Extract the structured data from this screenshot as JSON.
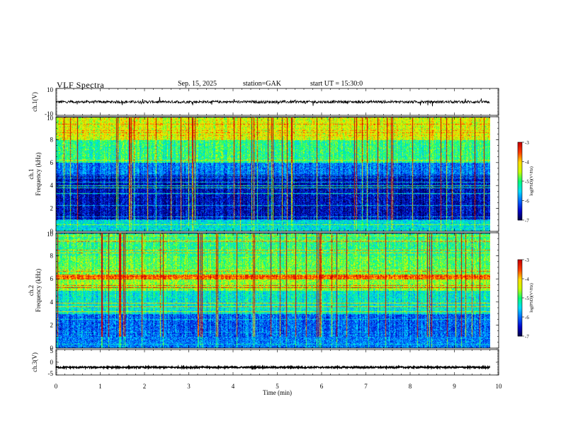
{
  "header": {
    "title": "VLF  Spectra",
    "date": "Sep. 15, 2025",
    "station": "station=GAK",
    "start": "start  UT =   15:30:0"
  },
  "colors": {
    "trace": "#000000",
    "colormap": [
      "#00003c",
      "#0000c8",
      "#0064ff",
      "#00dcff",
      "#00ff78",
      "#c8ff00",
      "#ffdc00",
      "#ff3c00",
      "#c80000",
      "#ffffff"
    ]
  },
  "chart_data": [
    {
      "type": "line",
      "panel": "ch1-waveform",
      "ylabel": "ch.1(V)",
      "ylim": [
        -10,
        10
      ],
      "yticks": [
        "10",
        "-10"
      ],
      "xlim": [
        0,
        9.8
      ],
      "series": [
        {
          "baseline": 0,
          "amplitude": 1
        }
      ]
    },
    {
      "type": "heatmap",
      "panel": "ch1-spectrogram",
      "ylabel": "ch.1\nFrequency (kHz)",
      "ylim": [
        0,
        10
      ],
      "yticks": [
        "0",
        "2",
        "4",
        "6",
        "8",
        "10"
      ],
      "xlim": [
        0,
        9.8
      ],
      "colorbar": {
        "label": "log(PSD)(V²/Hz)",
        "range": [
          -7,
          -3
        ],
        "ticks": [
          "-3",
          "-4",
          "-5",
          "-6",
          "-7"
        ]
      },
      "bands": [
        {
          "from": 0,
          "to": 1,
          "value": -5.5
        },
        {
          "from": 1,
          "to": 5,
          "value": -6.8
        },
        {
          "from": 5,
          "to": 6,
          "value": -6.2
        },
        {
          "from": 6,
          "to": 8,
          "value": -5.3
        },
        {
          "from": 8,
          "to": 10,
          "value": -4.6
        }
      ]
    },
    {
      "type": "heatmap",
      "panel": "ch2-spectrogram",
      "ylabel": "ch.2\nFrequency (kHz)",
      "ylim": [
        0,
        10
      ],
      "yticks": [
        "0",
        "2",
        "4",
        "6",
        "8",
        "10"
      ],
      "xlim": [
        0,
        9.8
      ],
      "colorbar": {
        "label": "log(PSD)(V²/Hz)",
        "range": [
          -7,
          -3
        ],
        "ticks": [
          "-3",
          "-4",
          "-5",
          "-6",
          "-7"
        ]
      },
      "bands": [
        {
          "from": 0,
          "to": 1,
          "value": -6.0
        },
        {
          "from": 1,
          "to": 3,
          "value": -6.3
        },
        {
          "from": 3,
          "to": 5,
          "value": -5.6
        },
        {
          "from": 5,
          "to": 6,
          "value": -4.9
        },
        {
          "from": 6,
          "to": 6.4,
          "value": -3.9
        },
        {
          "from": 6.4,
          "to": 8,
          "value": -5.1
        },
        {
          "from": 8,
          "to": 10,
          "value": -5.3
        }
      ]
    },
    {
      "type": "line",
      "panel": "ch3-waveform",
      "ylabel": "ch.3(V)",
      "ylim": [
        -5,
        5
      ],
      "yticks": [
        "5",
        "0",
        "-5"
      ],
      "xlim": [
        0,
        9.8
      ],
      "series": [
        {
          "baseline": -2,
          "amplitude": 0.3
        }
      ]
    }
  ],
  "xaxis": {
    "label": "Time  (min)",
    "range": [
      0,
      10
    ],
    "ticks": [
      "0",
      "1",
      "2",
      "3",
      "4",
      "5",
      "6",
      "7",
      "8",
      "9",
      "10"
    ]
  }
}
